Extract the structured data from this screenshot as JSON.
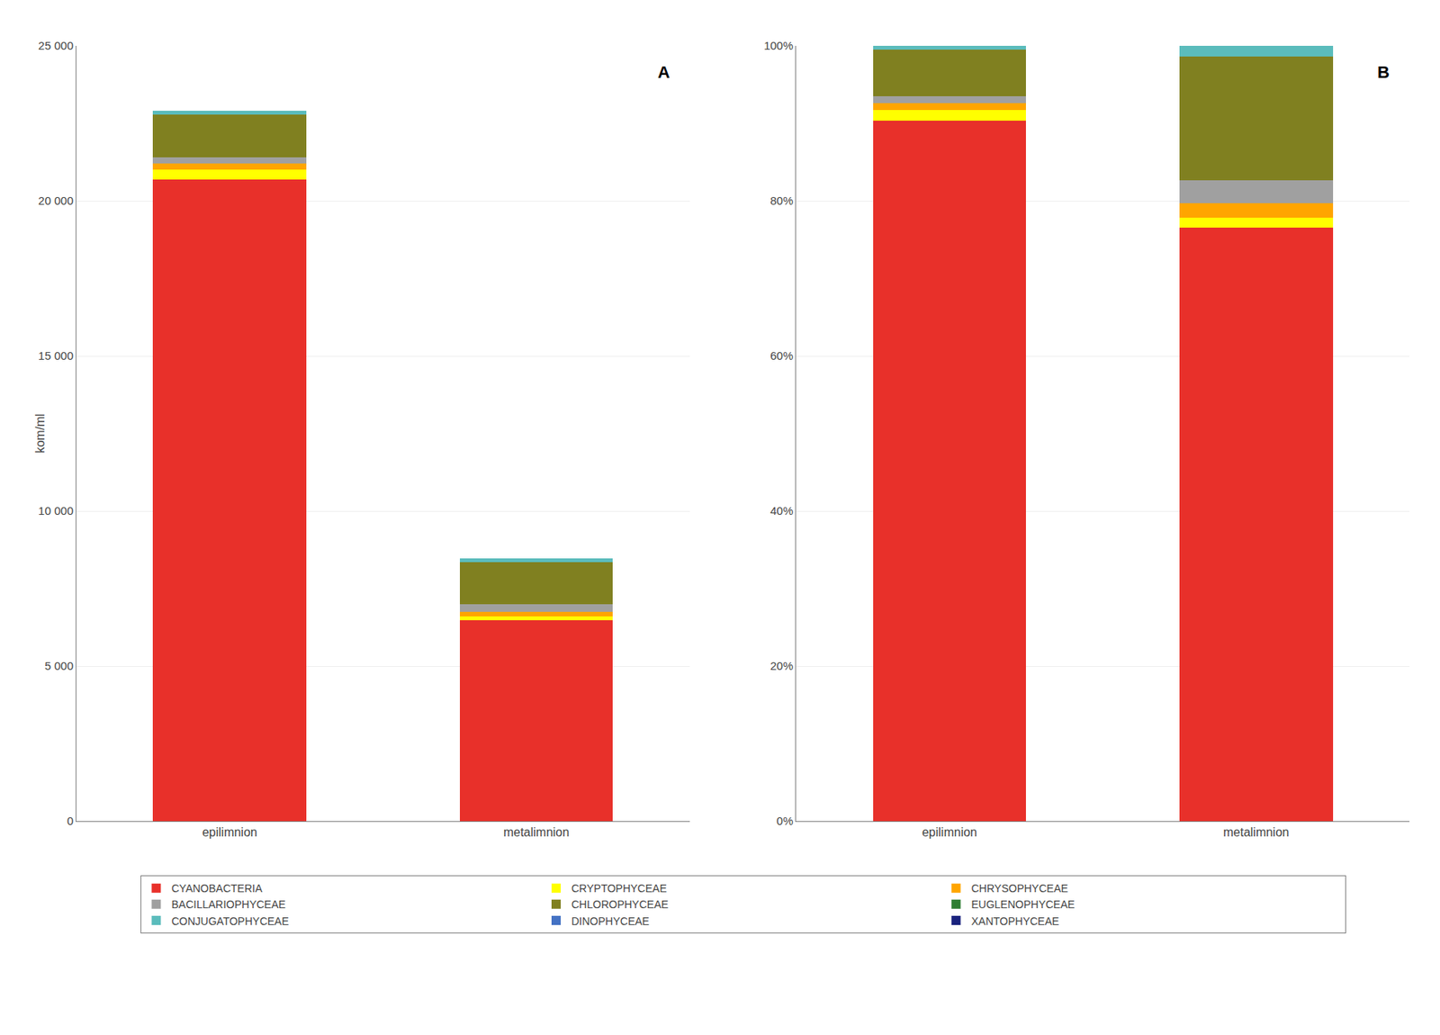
{
  "chart_data": [
    {
      "type": "bar",
      "title": "A",
      "stacked": true,
      "grid": true,
      "legend": "bottom",
      "ylabel": "kom/ml",
      "categories": [
        "epilimnion",
        "metalimnion"
      ],
      "series": [
        {
          "name": "CYANOBACTERIA",
          "color": "#E8302A",
          "values": [
            20700,
            6480
          ]
        },
        {
          "name": "CRYPTOPHYCEAE",
          "color": "#FFFF00",
          "values": [
            310,
            110
          ]
        },
        {
          "name": "CHRYSOPHYCEAE",
          "color": "#FFA500",
          "values": [
            200,
            160
          ]
        },
        {
          "name": "BACILLARIOPHYCEAE",
          "color": "#A0A0A0",
          "values": [
            190,
            250
          ]
        },
        {
          "name": "CHLOROPHYCEAE",
          "color": "#808020",
          "values": [
            1380,
            1350
          ]
        },
        {
          "name": "EUGLENOPHYCEAE",
          "color": "#2E7D32",
          "values": [
            0,
            0
          ]
        },
        {
          "name": "CONJUGATOPHYCEAE",
          "color": "#5BBCBC",
          "values": [
            120,
            120
          ]
        },
        {
          "name": "DINOPHYCEAE",
          "color": "#4472C4",
          "values": [
            0,
            0
          ]
        },
        {
          "name": "XANTOPHYCEAE",
          "color": "#1A237E",
          "values": [
            0,
            0
          ]
        }
      ],
      "ylim": [
        0,
        25000
      ],
      "yticks": [
        0,
        {
          "value": 5000,
          "label": "5 000"
        },
        {
          "value": 10000,
          "label": "10 000"
        },
        {
          "value": 15000,
          "label": "15 000"
        },
        {
          "value": 20000,
          "label": "20 000"
        },
        {
          "value": 25000,
          "label": "25 000"
        }
      ]
    },
    {
      "type": "bar",
      "title": "B",
      "stacked": true,
      "grid": true,
      "legend": "bottom",
      "categories": [
        "epilimnion",
        "metalimnion"
      ],
      "series": [
        {
          "name": "CYANOBACTERIA",
          "color": "#E8302A",
          "values": [
            90.3930131004367,
            76.50531286894923
          ]
        },
        {
          "name": "CRYPTOPHYCEAE",
          "color": "#FFFF00",
          "values": [
            1.3537117903930131,
            1.2987012987012987
          ]
        },
        {
          "name": "CHRYSOPHYCEAE",
          "color": "#FFA500",
          "values": [
            0.8733624454148472,
            1.8890200708382525
          ]
        },
        {
          "name": "BACILLARIOPHYCEAE",
          "color": "#A0A0A0",
          "values": [
            0.8296943231441049,
            2.9515938606847696
          ]
        },
        {
          "name": "CHLOROPHYCEAE",
          "color": "#808020",
          "values": [
            6.026200873362445,
            15.938606847697757
          ]
        },
        {
          "name": "EUGLENOPHYCEAE",
          "color": "#2E7D32",
          "values": [
            0,
            0
          ]
        },
        {
          "name": "CONJUGATOPHYCEAE",
          "color": "#5BBCBC",
          "values": [
            0.5240174672489083,
            1.4167650531286895
          ]
        },
        {
          "name": "DINOPHYCEAE",
          "color": "#4472C4",
          "values": [
            0,
            0
          ]
        },
        {
          "name": "XANTOPHYCEAE",
          "color": "#1A237E",
          "values": [
            0,
            0
          ]
        }
      ],
      "ylim": [
        0,
        100
      ],
      "yticks": [
        {
          "value": 0,
          "label": "0%"
        },
        {
          "value": 20,
          "label": "20%"
        },
        {
          "value": 40,
          "label": "40%"
        },
        {
          "value": 60,
          "label": "60%"
        },
        {
          "value": 80,
          "label": "80%"
        },
        {
          "value": 100,
          "label": "100%"
        }
      ]
    }
  ]
}
